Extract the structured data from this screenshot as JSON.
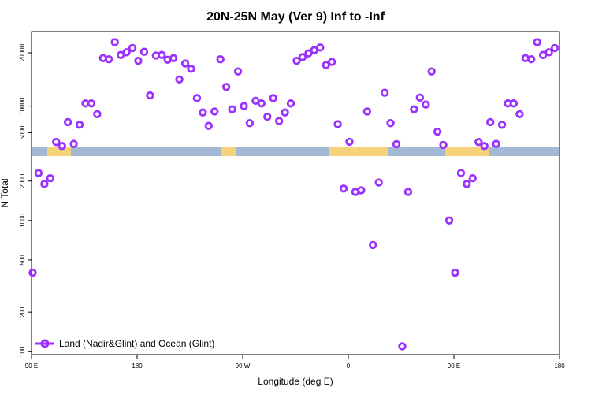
{
  "chart_data": {
    "type": "scatter",
    "title": "20N-25N May (Ver 9)   Inf to -Inf",
    "xlabel": "Longitude (deg E)",
    "ylabel": "N Total",
    "x_ticks": [
      {
        "label": "90 E",
        "x": 90
      },
      {
        "label": "180",
        "x": 180
      },
      {
        "label": "90 W",
        "x": 270
      },
      {
        "label": "0",
        "x": 360
      },
      {
        "label": "90 E",
        "x": 450
      },
      {
        "label": "180",
        "x": 540
      }
    ],
    "xlim": [
      90,
      540
    ],
    "upper_panel": {
      "scale": "linear",
      "ylim": [
        2400,
        24000
      ],
      "y_ticks": [
        5000,
        10000,
        20000
      ]
    },
    "lower_panel": {
      "scale": "log",
      "ylim": [
        95,
        3100
      ],
      "y_ticks": [
        100,
        200,
        500,
        1000,
        2000
      ]
    },
    "series": [
      {
        "name": "Land (Nadir&Glint) and Ocean (Glint)",
        "color": "#9b30ff",
        "points": [
          [
            91,
            400
          ],
          [
            96,
            2300
          ],
          [
            101,
            1900
          ],
          [
            106,
            2100
          ],
          [
            111,
            3250
          ],
          [
            116,
            2500
          ],
          [
            121,
            7000
          ],
          [
            126,
            2900
          ],
          [
            131,
            6500
          ],
          [
            136,
            10500
          ],
          [
            141,
            10500
          ],
          [
            146,
            8500
          ],
          [
            151,
            19000
          ],
          [
            156,
            18800
          ],
          [
            161,
            22000
          ],
          [
            166,
            19600
          ],
          [
            171,
            20100
          ],
          [
            176,
            20900
          ],
          [
            181,
            18500
          ],
          [
            186,
            20200
          ],
          [
            191,
            12000
          ],
          [
            196,
            19500
          ],
          [
            201,
            19600
          ],
          [
            206,
            18700
          ],
          [
            211,
            19000
          ],
          [
            216,
            15000
          ],
          [
            221,
            18000
          ],
          [
            226,
            17000
          ],
          [
            231,
            11500
          ],
          [
            236,
            8800
          ],
          [
            241,
            6300
          ],
          [
            246,
            9000
          ],
          [
            251,
            18800
          ],
          [
            256,
            13600
          ],
          [
            261,
            9400
          ],
          [
            266,
            16500
          ],
          [
            271,
            10000
          ],
          [
            276,
            6800
          ],
          [
            281,
            11000
          ],
          [
            286,
            10500
          ],
          [
            291,
            8000
          ],
          [
            296,
            11500
          ],
          [
            301,
            7200
          ],
          [
            306,
            8800
          ],
          [
            311,
            10500
          ],
          [
            316,
            18500
          ],
          [
            321,
            19200
          ],
          [
            326,
            19900
          ],
          [
            331,
            20500
          ],
          [
            336,
            21000
          ],
          [
            341,
            17700
          ],
          [
            346,
            18300
          ],
          [
            351,
            6600
          ],
          [
            356,
            1750
          ],
          [
            361,
            3300
          ],
          [
            366,
            1650
          ],
          [
            371,
            1700
          ],
          [
            376,
            9000
          ],
          [
            381,
            650
          ],
          [
            386,
            1950
          ],
          [
            391,
            12500
          ],
          [
            396,
            6800
          ],
          [
            401,
            2850
          ],
          [
            406,
            110
          ],
          [
            411,
            1650
          ],
          [
            416,
            9400
          ],
          [
            421,
            11600
          ],
          [
            426,
            10300
          ],
          [
            431,
            16500
          ],
          [
            436,
            5200
          ],
          [
            441,
            2700
          ],
          [
            446,
            1000
          ],
          [
            451,
            400
          ],
          [
            456,
            2300
          ],
          [
            461,
            1900
          ],
          [
            466,
            2100
          ],
          [
            471,
            3250
          ],
          [
            476,
            2500
          ],
          [
            481,
            7000
          ],
          [
            486,
            2900
          ],
          [
            491,
            6500
          ],
          [
            496,
            10500
          ],
          [
            501,
            10500
          ],
          [
            506,
            8500
          ],
          [
            511,
            19000
          ],
          [
            516,
            18800
          ],
          [
            521,
            22000
          ],
          [
            526,
            19600
          ],
          [
            531,
            20100
          ],
          [
            536,
            20900
          ]
        ]
      }
    ],
    "legend": {
      "position": "bottom-left",
      "label": "Land (Nadir&Glint) and Ocean (Glint)"
    },
    "map_strip_colors": {
      "ocean": "#a3b8d5",
      "land": "#f5d37a"
    }
  }
}
